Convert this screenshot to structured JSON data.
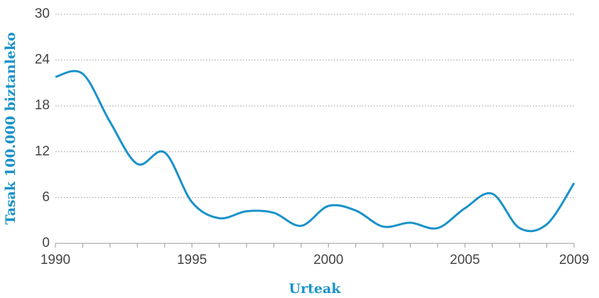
{
  "chart_data": {
    "type": "line",
    "x_label": "Urteak",
    "y_label": "Tasak 100.000 biztanleko",
    "x": [
      1990,
      1991,
      1992,
      1993,
      1994,
      1995,
      1996,
      1997,
      1998,
      1999,
      2000,
      2001,
      2002,
      2003,
      2004,
      2005,
      2006,
      2007,
      2008,
      2009
    ],
    "series": [
      {
        "color": "#1a92c9",
        "values": [
          21.8,
          22.2,
          15.9,
          10.4,
          11.9,
          5.4,
          3.3,
          4.2,
          4.0,
          2.3,
          4.9,
          4.3,
          2.2,
          2.7,
          2.0,
          4.6,
          6.5,
          2.0,
          2.5,
          7.9
        ]
      }
    ],
    "xlim": [
      1990,
      2009
    ],
    "xticks": [
      1990,
      1995,
      2000,
      2005,
      2009
    ],
    "xminorticks": [
      1990,
      1991,
      1992,
      1993,
      1994,
      1995,
      1996,
      1997,
      1998,
      1999,
      2000,
      2001,
      2002,
      2003,
      2004,
      2005,
      2006,
      2007,
      2008,
      2009
    ],
    "ylim": [
      0,
      30
    ],
    "yticks": [
      0,
      6,
      12,
      18,
      24,
      30
    ],
    "grid": true
  }
}
